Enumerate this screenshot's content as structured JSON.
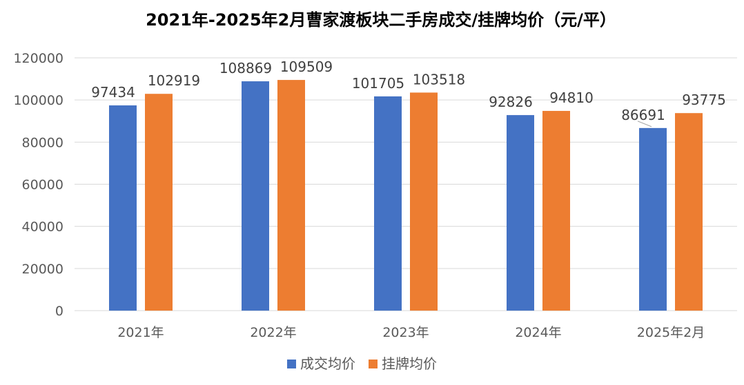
{
  "chart_data": {
    "type": "bar",
    "title": "2021年-2025年2月曹家渡板块二手房成交/挂牌均价（元/平）",
    "xlabel": "",
    "ylabel": "",
    "categories": [
      "2021年",
      "2022年",
      "2023年",
      "2024年",
      "2025年2月"
    ],
    "series": [
      {
        "name": "成交均价",
        "color": "#4472c4",
        "values": [
          97434,
          108869,
          101705,
          92826,
          86691
        ]
      },
      {
        "name": "挂牌均价",
        "color": "#ed7d31",
        "values": [
          102919,
          109509,
          103518,
          94810,
          93775
        ]
      }
    ],
    "ylim": [
      0,
      120000
    ],
    "yticks": [
      0,
      20000,
      40000,
      60000,
      80000,
      100000,
      120000
    ],
    "grid": true,
    "legend": "bottom",
    "data_labels": true
  }
}
